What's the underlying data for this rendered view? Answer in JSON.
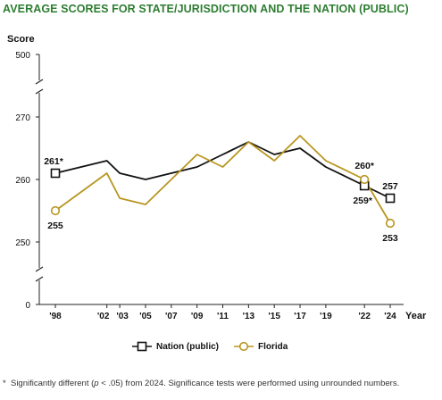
{
  "title": "AVERAGE SCORES FOR STATE/JURISDICTION AND THE NATION (PUBLIC)",
  "footnote": {
    "star": "*",
    "text_before": "Significantly different (",
    "p_symbol": "p",
    "text_after": " < .05) from 2024. Significance tests were performed using unrounded numbers."
  },
  "colors": {
    "nation": "#111111",
    "florida": "#b8961f",
    "title": "#2e7d32"
  },
  "chart_data": {
    "type": "line",
    "ylabel": "Score",
    "xlabel": "Year",
    "y_ticks": [
      "0",
      "250",
      "260",
      "270",
      "500"
    ],
    "y_break_between": [
      [
        0,
        250
      ],
      [
        270,
        500
      ]
    ],
    "x_ticks": [
      "'98",
      "'02",
      "'03",
      "'05",
      "'07",
      "'09",
      "'11",
      "'13",
      "'15",
      "'17",
      "'19",
      "'22",
      "'24"
    ],
    "series": [
      {
        "name": "Nation (public)",
        "x": [
          1998,
          2002,
          2003,
          2005,
          2007,
          2009,
          2011,
          2013,
          2015,
          2017,
          2019,
          2022,
          2024
        ],
        "values": [
          261,
          263,
          261,
          260,
          261,
          262,
          264,
          266,
          264,
          265,
          262,
          259,
          257
        ],
        "labels": [
          {
            "year": 1998,
            "text": "261*",
            "pos": "above"
          },
          {
            "year": 2022,
            "text": "259*",
            "pos": "below"
          },
          {
            "year": 2024,
            "text": "257",
            "pos": "above"
          }
        ]
      },
      {
        "name": "Florida",
        "x": [
          1998,
          2002,
          2003,
          2005,
          2007,
          2009,
          2011,
          2013,
          2015,
          2017,
          2019,
          2022,
          2024
        ],
        "values": [
          255,
          261,
          257,
          256,
          260,
          264,
          262,
          266,
          263,
          267,
          263,
          260,
          253
        ],
        "labels": [
          {
            "year": 1998,
            "text": "255",
            "pos": "below"
          },
          {
            "year": 2022,
            "text": "260*",
            "pos": "above"
          },
          {
            "year": 2024,
            "text": "253",
            "pos": "below"
          }
        ]
      }
    ]
  }
}
